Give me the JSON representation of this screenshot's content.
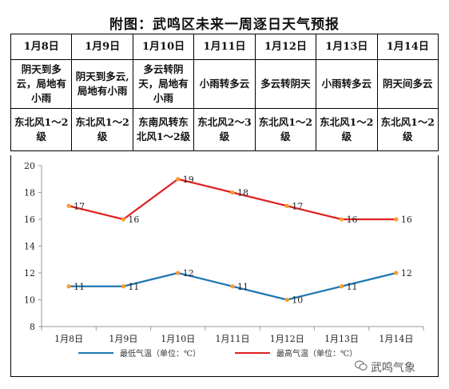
{
  "title": "附图：武鸣区未来一周逐日天气预报",
  "forecast": [
    {
      "date": "1月8日",
      "weather": "阴天到多云，局地有小雨",
      "wind": "东北风1～2级"
    },
    {
      "date": "1月9日",
      "weather": "阴天到多云,局地有小雨",
      "wind": "东北风1～2级"
    },
    {
      "date": "1月10日",
      "weather": "多云转阴天，局地有小雨",
      "wind": "东南风转东北风1～2级"
    },
    {
      "date": "1月11日",
      "weather": "小雨转多云",
      "wind": "东北风2～3级"
    },
    {
      "date": "1月12日",
      "weather": "多云转阴天",
      "wind": "东北风1～2级"
    },
    {
      "date": "1月13日",
      "weather": "小雨转多云",
      "wind": "东北风1～2级"
    },
    {
      "date": "1月14日",
      "weather": "阴天间多云",
      "wind": "东北风1～2级"
    }
  ],
  "chart_data": {
    "type": "line",
    "categories": [
      "1月8日",
      "1月9日",
      "1月10日",
      "1月11日",
      "1月12日",
      "1月13日",
      "1月14日"
    ],
    "series": [
      {
        "name": "最低气温（单位：℃）",
        "values": [
          11,
          11,
          12,
          11,
          10,
          11,
          12
        ],
        "color": "#1f77b4"
      },
      {
        "name": "最高气温（单位：℃）",
        "values": [
          17,
          16,
          19,
          18,
          17,
          16,
          16
        ],
        "color": "#e02020"
      }
    ],
    "ylim": [
      8,
      20
    ],
    "yticks": [
      8,
      10,
      12,
      14,
      16,
      18,
      20
    ],
    "point_color": "#ff9a2e",
    "grid": false,
    "legend": "bottom"
  },
  "watermark": {
    "text": "武鸣气象",
    "icon": "wechat-icon"
  }
}
